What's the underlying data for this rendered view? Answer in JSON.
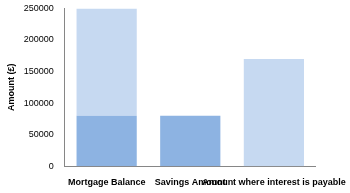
{
  "chart_data": {
    "type": "bar",
    "stacked": true,
    "grid": false,
    "y_label": "Amount (£)",
    "categories": [
      "Mortgage Balance",
      "Savings Amount",
      "Amount where interest is payable"
    ],
    "series": [
      {
        "color": "#8db3e2",
        "values": [
          80000,
          80000,
          null
        ]
      },
      {
        "color": "#c6d9f1",
        "values": [
          170000,
          null,
          170000
        ]
      }
    ],
    "ylim": [
      0,
      250000
    ],
    "yticks": [
      0,
      50000,
      100000,
      150000,
      200000,
      250000
    ]
  }
}
